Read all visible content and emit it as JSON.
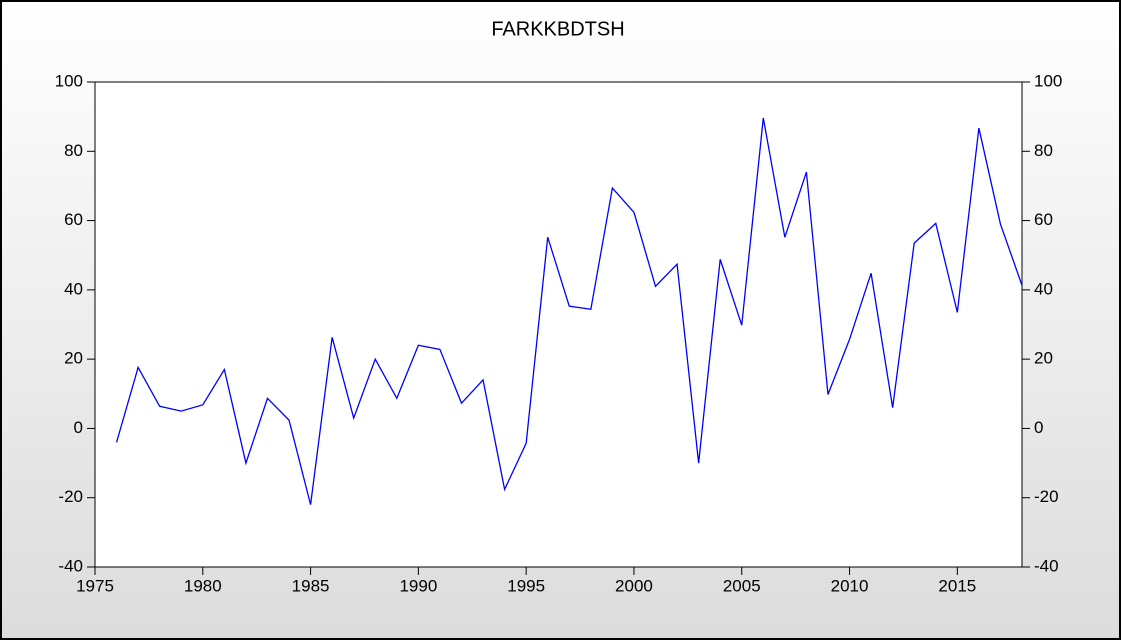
{
  "chart_data": {
    "type": "line",
    "title": "FARKKBDTSH",
    "x": [
      1976,
      1977,
      1978,
      1979,
      1980,
      1981,
      1982,
      1983,
      1984,
      1985,
      1986,
      1987,
      1988,
      1989,
      1990,
      1991,
      1992,
      1993,
      1994,
      1995,
      1996,
      1997,
      1998,
      1999,
      2000,
      2001,
      2002,
      2003,
      2004,
      2005,
      2006,
      2007,
      2008,
      2009,
      2010,
      2011,
      2012,
      2013,
      2014,
      2015,
      2016,
      2017,
      2018
    ],
    "series": [
      {
        "name": "FARKKBDTSH",
        "color": "#0000ff",
        "values": [
          -4,
          17.6,
          6.4,
          5,
          6.8,
          17,
          -10,
          8.7,
          2.4,
          -22,
          26.3,
          3,
          20,
          8.7,
          24,
          22.8,
          7.3,
          14,
          -17.6,
          -4.3,
          55.2,
          35.3,
          34.4,
          69.4,
          62.4,
          41,
          47.4,
          -10,
          48.8,
          29.8,
          89.6,
          55.2,
          74,
          9.8,
          25.7,
          44.8,
          6,
          53.5,
          59.2,
          33.5,
          86.7,
          59,
          41.3
        ]
      }
    ],
    "xlim": [
      1975,
      2018
    ],
    "xticks": [
      1975,
      1980,
      1985,
      1990,
      1995,
      2000,
      2005,
      2010,
      2015
    ],
    "ylim": [
      -40,
      100
    ],
    "yticks": [
      -40,
      -20,
      0,
      20,
      40,
      60,
      80,
      100
    ],
    "y2lim": [
      -40,
      100
    ],
    "y2ticks": [
      -40,
      -20,
      0,
      20,
      40,
      60,
      80,
      100
    ],
    "grid": false
  }
}
